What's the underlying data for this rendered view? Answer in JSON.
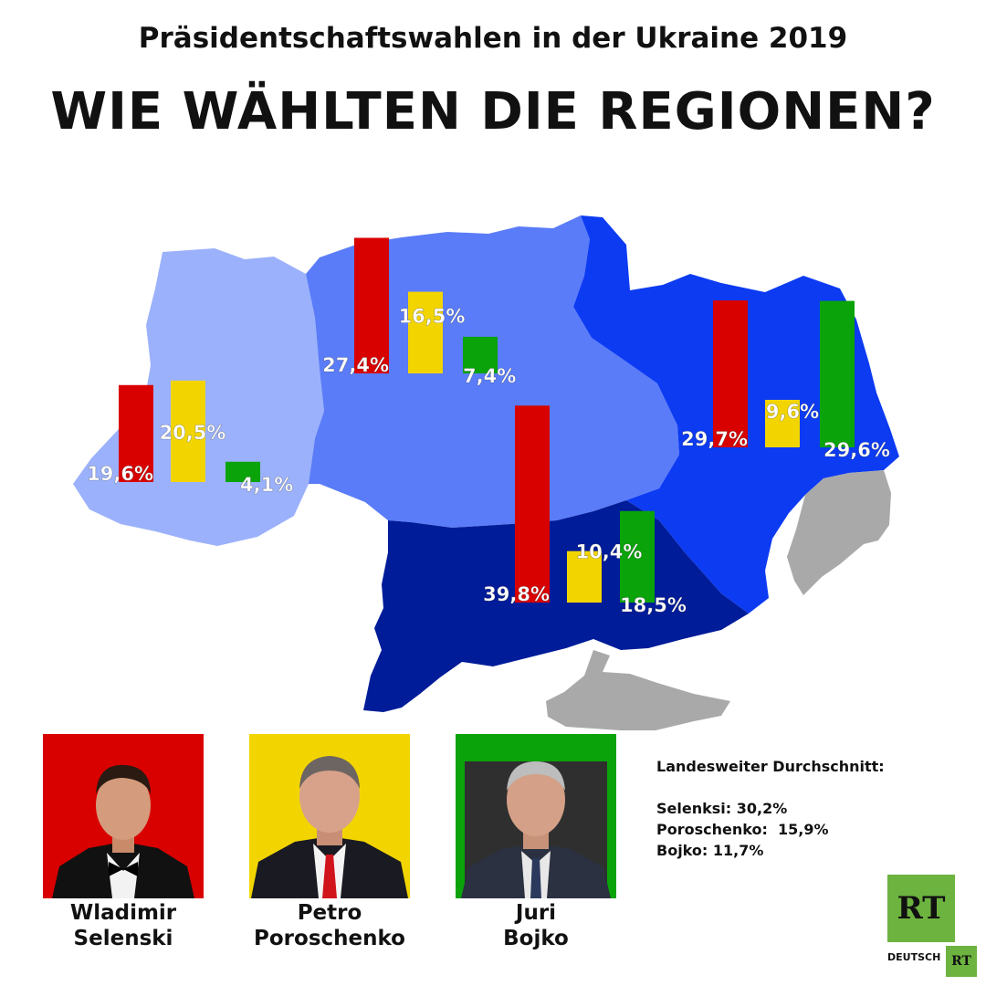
{
  "header": {
    "subtitle": "Präsidentschaftswahlen in der Ukraine 2019",
    "title": "WIE WÄHLTEN DIE REGIONEN?"
  },
  "colors": {
    "selenski": "#d90000",
    "poroschenko": "#f2d500",
    "bojko": "#0aa30a",
    "west": "#9bb1fb",
    "center": "#5a7cf8",
    "east": "#0c3bf2",
    "south": "#001c99",
    "occupied": "#a9a9a9"
  },
  "chart_data": {
    "type": "bar",
    "categories": [
      "West",
      "Zentrum",
      "Osten",
      "Süden"
    ],
    "series": [
      {
        "name": "Selenski",
        "values": [
          19.6,
          27.4,
          29.7,
          39.8
        ],
        "labels": [
          "19,6%",
          "27,4%",
          "29,7%",
          "39,8%"
        ]
      },
      {
        "name": "Poroschenko",
        "values": [
          20.5,
          16.5,
          9.6,
          10.4
        ],
        "labels": [
          "20,5%",
          "16,5%",
          "9,6%",
          "10,4%"
        ]
      },
      {
        "name": "Bojko",
        "values": [
          4.1,
          7.4,
          29.6,
          18.5
        ],
        "labels": [
          "4,1%",
          "7,4%",
          "29,6%",
          "18,5%"
        ]
      }
    ]
  },
  "candidates": [
    {
      "first": "Wladimir",
      "last": "Selenski"
    },
    {
      "first": "Petro",
      "last": "Poroschenko"
    },
    {
      "first": "Juri",
      "last": "Bojko"
    }
  ],
  "national_average": {
    "heading": "Landesweiter Durchschnitt:",
    "lines": [
      "Selenksi: 30,2%",
      "Poroschenko:  15,9%",
      "Bojko: 11,7%"
    ]
  },
  "logo": {
    "text": "RT",
    "subtext": "DEUTSCH"
  }
}
